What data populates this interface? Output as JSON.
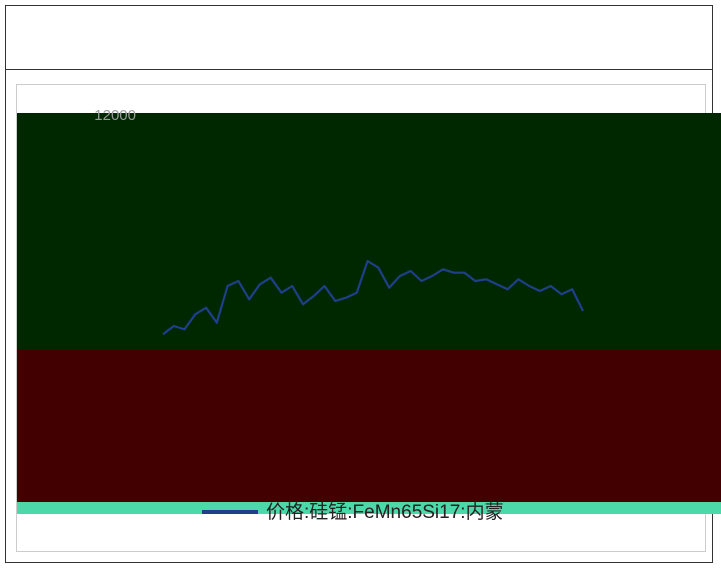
{
  "chart_data": {
    "type": "line",
    "title": "",
    "xlabel": "",
    "ylabel": "",
    "y_top_tick": "12000",
    "visible_y_tick_values": [
      12000
    ],
    "ylim": [
      0,
      12000
    ],
    "legend_position": "bottom",
    "series": [
      {
        "label": "价格:硅锰:FeMn65Si17:内蒙",
        "color": "#1f3f8a",
        "values": [
          5450,
          5700,
          5600,
          6050,
          6250,
          5800,
          6900,
          7050,
          6500,
          6950,
          7150,
          6700,
          6900,
          6350,
          6600,
          6900,
          6450,
          6550,
          6700,
          7650,
          7450,
          6850,
          7200,
          7350,
          7050,
          7200,
          7400,
          7300,
          7300,
          7050,
          7100,
          6950,
          6800,
          7100,
          6900,
          6750,
          6900,
          6650,
          6800,
          6150
        ]
      }
    ]
  },
  "colors": {
    "plot_background": "#002800",
    "lower_band": "#420000",
    "bottom_band": "#4cd8a8",
    "line": "#1f3f8a"
  }
}
